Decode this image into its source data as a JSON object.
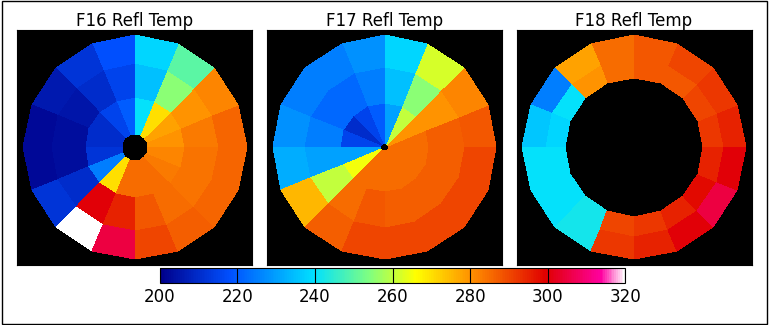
{
  "chart_data": [
    {
      "type": "heatmap",
      "title": "F16 Refl Temp",
      "tick_labels": false,
      "angle_edges": [
        0,
        22.5,
        45,
        67.5,
        90,
        112.5,
        135,
        157.5,
        180,
        202.5,
        225,
        247.5,
        270,
        292.5,
        315,
        337.5,
        360
      ],
      "r_edges": [
        0.12,
        0.45,
        0.75,
        1.0
      ],
      "cells": [
        [
          280,
          278,
          270,
          240,
          220,
          215,
          210,
          210,
          212,
          225,
          270,
          285,
          285,
          285,
          283,
          282
        ],
        [
          283,
          280,
          255,
          235,
          215,
          210,
          205,
          203,
          203,
          210,
          300,
          295,
          288,
          285,
          284,
          284
        ],
        [
          286,
          282,
          250,
          238,
          218,
          212,
          206,
          202,
          202,
          212,
          320,
          305,
          290,
          287,
          286,
          286
        ]
      ]
    },
    {
      "type": "heatmap",
      "title": "F17 Refl Temp",
      "tick_labels": false,
      "angle_edges": [
        0,
        22.5,
        45,
        67.5,
        90,
        112.5,
        135,
        157.5,
        180,
        202.5,
        225,
        247.5,
        270,
        292.5,
        315,
        337.5,
        360
      ],
      "r_edges": [
        0.03,
        0.4,
        0.72,
        1.0
      ],
      "cells": [
        [
          285,
          280,
          260,
          230,
          220,
          215,
          210,
          215,
          230,
          265,
          285,
          285,
          285,
          285,
          285,
          285
        ],
        [
          287,
          280,
          255,
          235,
          225,
          222,
          222,
          225,
          230,
          260,
          285,
          288,
          287,
          287,
          287,
          287
        ],
        [
          288,
          282,
          262,
          238,
          228,
          225,
          225,
          228,
          232,
          275,
          287,
          290,
          290,
          290,
          290,
          290
        ]
      ]
    },
    {
      "type": "heatmap",
      "title": "F18 Refl Temp",
      "tick_labels": false,
      "angle_edges": [
        0,
        22.5,
        45,
        67.5,
        90,
        112.5,
        135,
        157.5,
        180,
        202.5,
        225,
        247.5,
        270,
        292.5,
        315,
        337.5,
        360
      ],
      "r_edges": [
        0.62,
        0.8,
        1.0
      ],
      "cells": [
        [
          292,
          290,
          288,
          288,
          285,
          280,
          240,
          238,
          240,
          240,
          242,
          290,
          292,
          295,
          298,
          295
        ],
        [
          295,
          292,
          290,
          288,
          285,
          278,
          225,
          236,
          240,
          240,
          242,
          292,
          295,
          300,
          305,
          300
        ]
      ]
    }
  ],
  "colorbar": {
    "range": [
      200,
      320
    ],
    "ticks": [
      200,
      220,
      240,
      260,
      280,
      300,
      320
    ]
  }
}
